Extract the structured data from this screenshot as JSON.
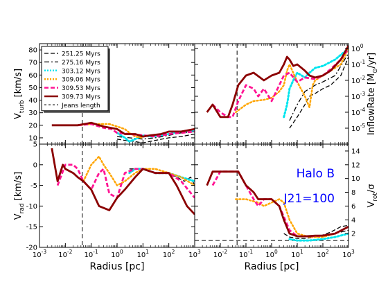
{
  "chart_data": {
    "type": "line",
    "x_scale": "log",
    "xlim": [
      0.001,
      1000
    ],
    "x_tick_labels": [
      "10^-3",
      "10^-2",
      "10^-1",
      "10^0",
      "10^1",
      "10^2",
      "10^3"
    ],
    "xlabel": "Radius [pc]",
    "legend_placement": "upper-left (top-left panel)",
    "legend": [
      {
        "label": "251.25 Myrs",
        "color": "#000000",
        "style": "dashed"
      },
      {
        "label": "275.16 Myrs",
        "color": "#000000",
        "style": "dashdot"
      },
      {
        "label": "303.12 Myrs",
        "color": "#00e5ee",
        "style": "dotted"
      },
      {
        "label": "309.06 Myrs",
        "color": "#ffa500",
        "style": "dotted"
      },
      {
        "label": "309.53 Myrs",
        "color": "#ff1493",
        "style": "dashed"
      },
      {
        "label": "309.73 Myrs",
        "color": "#8b0000",
        "style": "solid"
      },
      {
        "label": "Jeans length",
        "color": "#000000",
        "style": "dashed"
      }
    ],
    "jeans_length_x": 0.045,
    "panels": [
      {
        "id": "turb",
        "ylabel": "V_turb [km/s]",
        "ylabel_main": "V",
        "ylabel_sub": "turb",
        "ylabel_unit": " [km/s]",
        "y_scale": "linear",
        "ylim": [
          5,
          85
        ],
        "y_ticks": [
          "10",
          "20",
          "30",
          "40",
          "50",
          "60",
          "70",
          "80"
        ],
        "series": [
          {
            "x": [
              1,
              2,
              5,
              10,
              30,
              100,
              300,
              1000
            ],
            "y": [
              9,
              8,
              7,
              6,
              8,
              10,
              11,
              13
            ]
          },
          {
            "x": [
              1,
              3,
              10,
              30,
              100,
              300,
              1000
            ],
            "y": [
              11,
              10,
              9,
              10,
              12,
              14,
              15
            ]
          },
          {
            "x": [
              1,
              2,
              3,
              5,
              10,
              20,
              50,
              100,
              300,
              1000
            ],
            "y": [
              14,
              10,
              7,
              9,
              12,
              11,
              12,
              13,
              15,
              16
            ]
          },
          {
            "x": [
              0.03,
              0.1,
              0.3,
              0.5,
              1,
              2,
              3,
              5,
              10
            ],
            "y": [
              20,
              21,
              21,
              21,
              19,
              17,
              14,
              11,
              10
            ]
          },
          {
            "x": [
              0.03,
              0.1,
              0.3,
              0.6,
              1,
              3,
              10,
              30,
              100,
              300,
              1000
            ],
            "y": [
              20,
              21,
              18,
              17,
              14,
              13,
              12,
              11,
              13,
              14,
              15
            ]
          },
          {
            "x": [
              0.003,
              0.01,
              0.03,
              0.1,
              0.3,
              1,
              2,
              5,
              10,
              20,
              50,
              100,
              300,
              1000
            ],
            "y": [
              20,
              20,
              20,
              22,
              19,
              17,
              13,
              13,
              11,
              12,
              13,
              15,
              15,
              17
            ]
          }
        ]
      },
      {
        "id": "inflow",
        "ylabel": "InflowRate [M⊙/yr]",
        "ylabel_main": "InflowRate [M",
        "ylabel_sun": "⊙",
        "ylabel_unit": "/yr]",
        "y_scale": "log",
        "ylim": [
          1e-06,
          2
        ],
        "y_ticks": [
          "10^-5",
          "10^-4",
          "10^-3",
          "10^-2",
          "10^-1",
          "10^0"
        ],
        "series": [
          {
            "x": [
              5,
              10,
              20,
              30,
              50,
              100,
              200,
              500,
              1000
            ],
            "y": [
              1e-05,
              5e-05,
              0.0003,
              0.001,
              0.0015,
              0.003,
              0.005,
              0.02,
              0.3
            ]
          },
          {
            "x": [
              5,
              10,
              20,
              50,
              100,
              300,
              1000
            ],
            "y": [
              3e-05,
              0.0003,
              0.002,
              0.005,
              0.008,
              0.02,
              0.5
            ]
          },
          {
            "x": [
              3,
              4,
              5,
              7,
              10,
              20,
              30,
              50,
              100,
              300,
              1000
            ],
            "y": [
              5e-05,
              0.0003,
              0.003,
              0.01,
              0.03,
              0.015,
              0.03,
              0.06,
              0.08,
              0.2,
              1
            ]
          },
          {
            "x": [
              0.04,
              0.1,
              0.2,
              0.5,
              1,
              2,
              3,
              4,
              5,
              10,
              20,
              30,
              40,
              50,
              100,
              200,
              500,
              1000
            ],
            "y": [
              0.0001,
              0.0003,
              0.0005,
              0.0006,
              0.0008,
              0.002,
              0.005,
              0.04,
              0.1,
              0.008,
              0.001,
              0.0002,
              0.005,
              0.01,
              0.02,
              0.04,
              0.1,
              1
            ]
          },
          {
            "x": [
              0.005,
              0.01,
              0.02,
              0.03,
              0.05,
              0.1,
              0.2,
              0.3,
              0.5,
              1,
              2,
              3,
              5,
              10,
              20,
              50,
              100,
              200,
              500,
              1000
            ],
            "y": [
              0.0003,
              0.0001,
              5e-05,
              5e-05,
              0.0005,
              0.005,
              0.003,
              0.001,
              0.003,
              0.0005,
              0.005,
              0.02,
              0.03,
              0.008,
              0.015,
              0.012,
              0.02,
              0.05,
              0.2,
              1
            ]
          },
          {
            "x": [
              0.003,
              0.005,
              0.01,
              0.02,
              0.03,
              0.05,
              0.1,
              0.2,
              0.5,
              1,
              2,
              3,
              4,
              5,
              7,
              10,
              20,
              30,
              50,
              100,
              200,
              500,
              1000
            ],
            "y": [
              0.0001,
              0.0003,
              5e-05,
              5e-05,
              0.0003,
              0.005,
              0.02,
              0.03,
              0.01,
              0.02,
              0.03,
              0.1,
              0.3,
              0.2,
              0.08,
              0.1,
              0.04,
              0.02,
              0.015,
              0.02,
              0.04,
              0.2,
              1.5
            ]
          }
        ]
      },
      {
        "id": "rad",
        "ylabel": "V_rad [km/s]",
        "ylabel_main": "V",
        "ylabel_sub": "rad",
        "ylabel_unit": " [km/s]",
        "y_scale": "linear",
        "ylim": [
          -20,
          5
        ],
        "y_ticks": [
          "-20",
          "-15",
          "-10",
          "-5",
          "0",
          "5"
        ],
        "series": [
          {
            "x": [
              3,
              5,
              10,
              30,
              100,
              200,
              400,
              700,
              1000
            ],
            "y": [
              -1,
              -1,
              -1,
              -2,
              -2,
              -3,
              -4,
              -3,
              -5
            ]
          },
          {
            "x": [
              5,
              10,
              30,
              100,
              300,
              1000
            ],
            "y": [
              -1,
              -1,
              -2,
              -2,
              -3,
              -4
            ]
          },
          {
            "x": [
              3,
              5,
              10,
              30,
              100,
              300,
              1000
            ],
            "y": [
              -2,
              -1,
              -1,
              -2,
              -2,
              -3,
              -4
            ]
          },
          {
            "x": [
              0.05,
              0.1,
              0.2,
              0.3,
              0.5,
              1,
              2,
              5,
              10,
              30,
              100,
              300,
              1000
            ],
            "y": [
              -4,
              0,
              2,
              0,
              -2,
              -5,
              -4,
              -2,
              -1,
              -1,
              -2,
              -3,
              -5
            ]
          },
          {
            "x": [
              0.005,
              0.01,
              0.02,
              0.03,
              0.05,
              0.1,
              0.2,
              0.3,
              0.5,
              1,
              2,
              5,
              10,
              30,
              100,
              300,
              1000
            ],
            "y": [
              -5,
              0,
              0,
              -1,
              -4,
              -6,
              -2,
              -1,
              -7,
              -8,
              -2,
              -1,
              -1,
              -2,
              -2,
              -4,
              -8
            ]
          },
          {
            "x": [
              0.003,
              0.005,
              0.008,
              0.01,
              0.02,
              0.03,
              0.05,
              0.1,
              0.2,
              0.5,
              1,
              2,
              5,
              10,
              30,
              100,
              200,
              500,
              1000
            ],
            "y": [
              4,
              -4,
              0,
              -1,
              -2,
              -3,
              -4,
              -6,
              -10,
              -11,
              -8,
              -6,
              -3,
              -1,
              -2,
              -2,
              -5,
              -10,
              -12
            ]
          }
        ]
      },
      {
        "id": "rot",
        "ylabel": "V_rot/σ",
        "ylabel_main": "V",
        "ylabel_sub": "rot",
        "ylabel_unit": "/σ",
        "y_scale": "linear",
        "ylim": [
          0,
          15
        ],
        "y_ticks": [
          "2",
          "4",
          "6",
          "8",
          "10",
          "12",
          "14"
        ],
        "annotation_lines": [
          "Halo B",
          "J21=100"
        ],
        "hline_y": 1,
        "series": [
          {
            "x": [
              3,
              5,
              10,
              20,
              50,
              100,
              200,
              500,
              1000
            ],
            "y": [
              2,
              1.5,
              1.3,
              1.3,
              1.5,
              1.8,
              2.2,
              3,
              3.2
            ]
          },
          {
            "x": [
              5,
              10,
              30,
              100,
              300,
              1000
            ],
            "y": [
              2,
              1.7,
              1.5,
              1.7,
              2,
              2.5
            ]
          },
          {
            "x": [
              5,
              10,
              30,
              100,
              300,
              1000
            ],
            "y": [
              1.2,
              1,
              1,
              1.2,
              1.5,
              2
            ]
          },
          {
            "x": [
              0.04,
              0.1,
              0.3,
              0.5,
              1,
              2,
              3,
              5,
              10,
              30,
              100,
              300,
              1000
            ],
            "y": [
              7,
              7,
              6.5,
              6,
              6.5,
              7,
              6.5,
              4,
              2,
              1.5,
              1.5,
              2,
              3
            ]
          },
          {
            "x": [
              0.005,
              0.01,
              0.02,
              0.03,
              0.05,
              0.1,
              0.2,
              0.3,
              0.5,
              1,
              2,
              5,
              10,
              30,
              100,
              300,
              1000
            ],
            "y": [
              9,
              11,
              11,
              11,
              11,
              9,
              7,
              6,
              7,
              7,
              6,
              2.5,
              1.6,
              1.6,
              1.7,
              2,
              3
            ]
          },
          {
            "x": [
              0.003,
              0.005,
              0.01,
              0.02,
              0.03,
              0.05,
              0.1,
              0.2,
              0.3,
              0.5,
              1,
              2,
              3,
              5,
              10,
              20,
              50,
              100,
              300,
              1000
            ],
            "y": [
              9,
              11,
              11,
              11,
              11,
              11,
              9,
              8,
              7,
              7,
              7,
              6,
              4,
              2,
              1.6,
              1.6,
              1.7,
              1.7,
              2,
              3
            ]
          }
        ]
      }
    ]
  }
}
